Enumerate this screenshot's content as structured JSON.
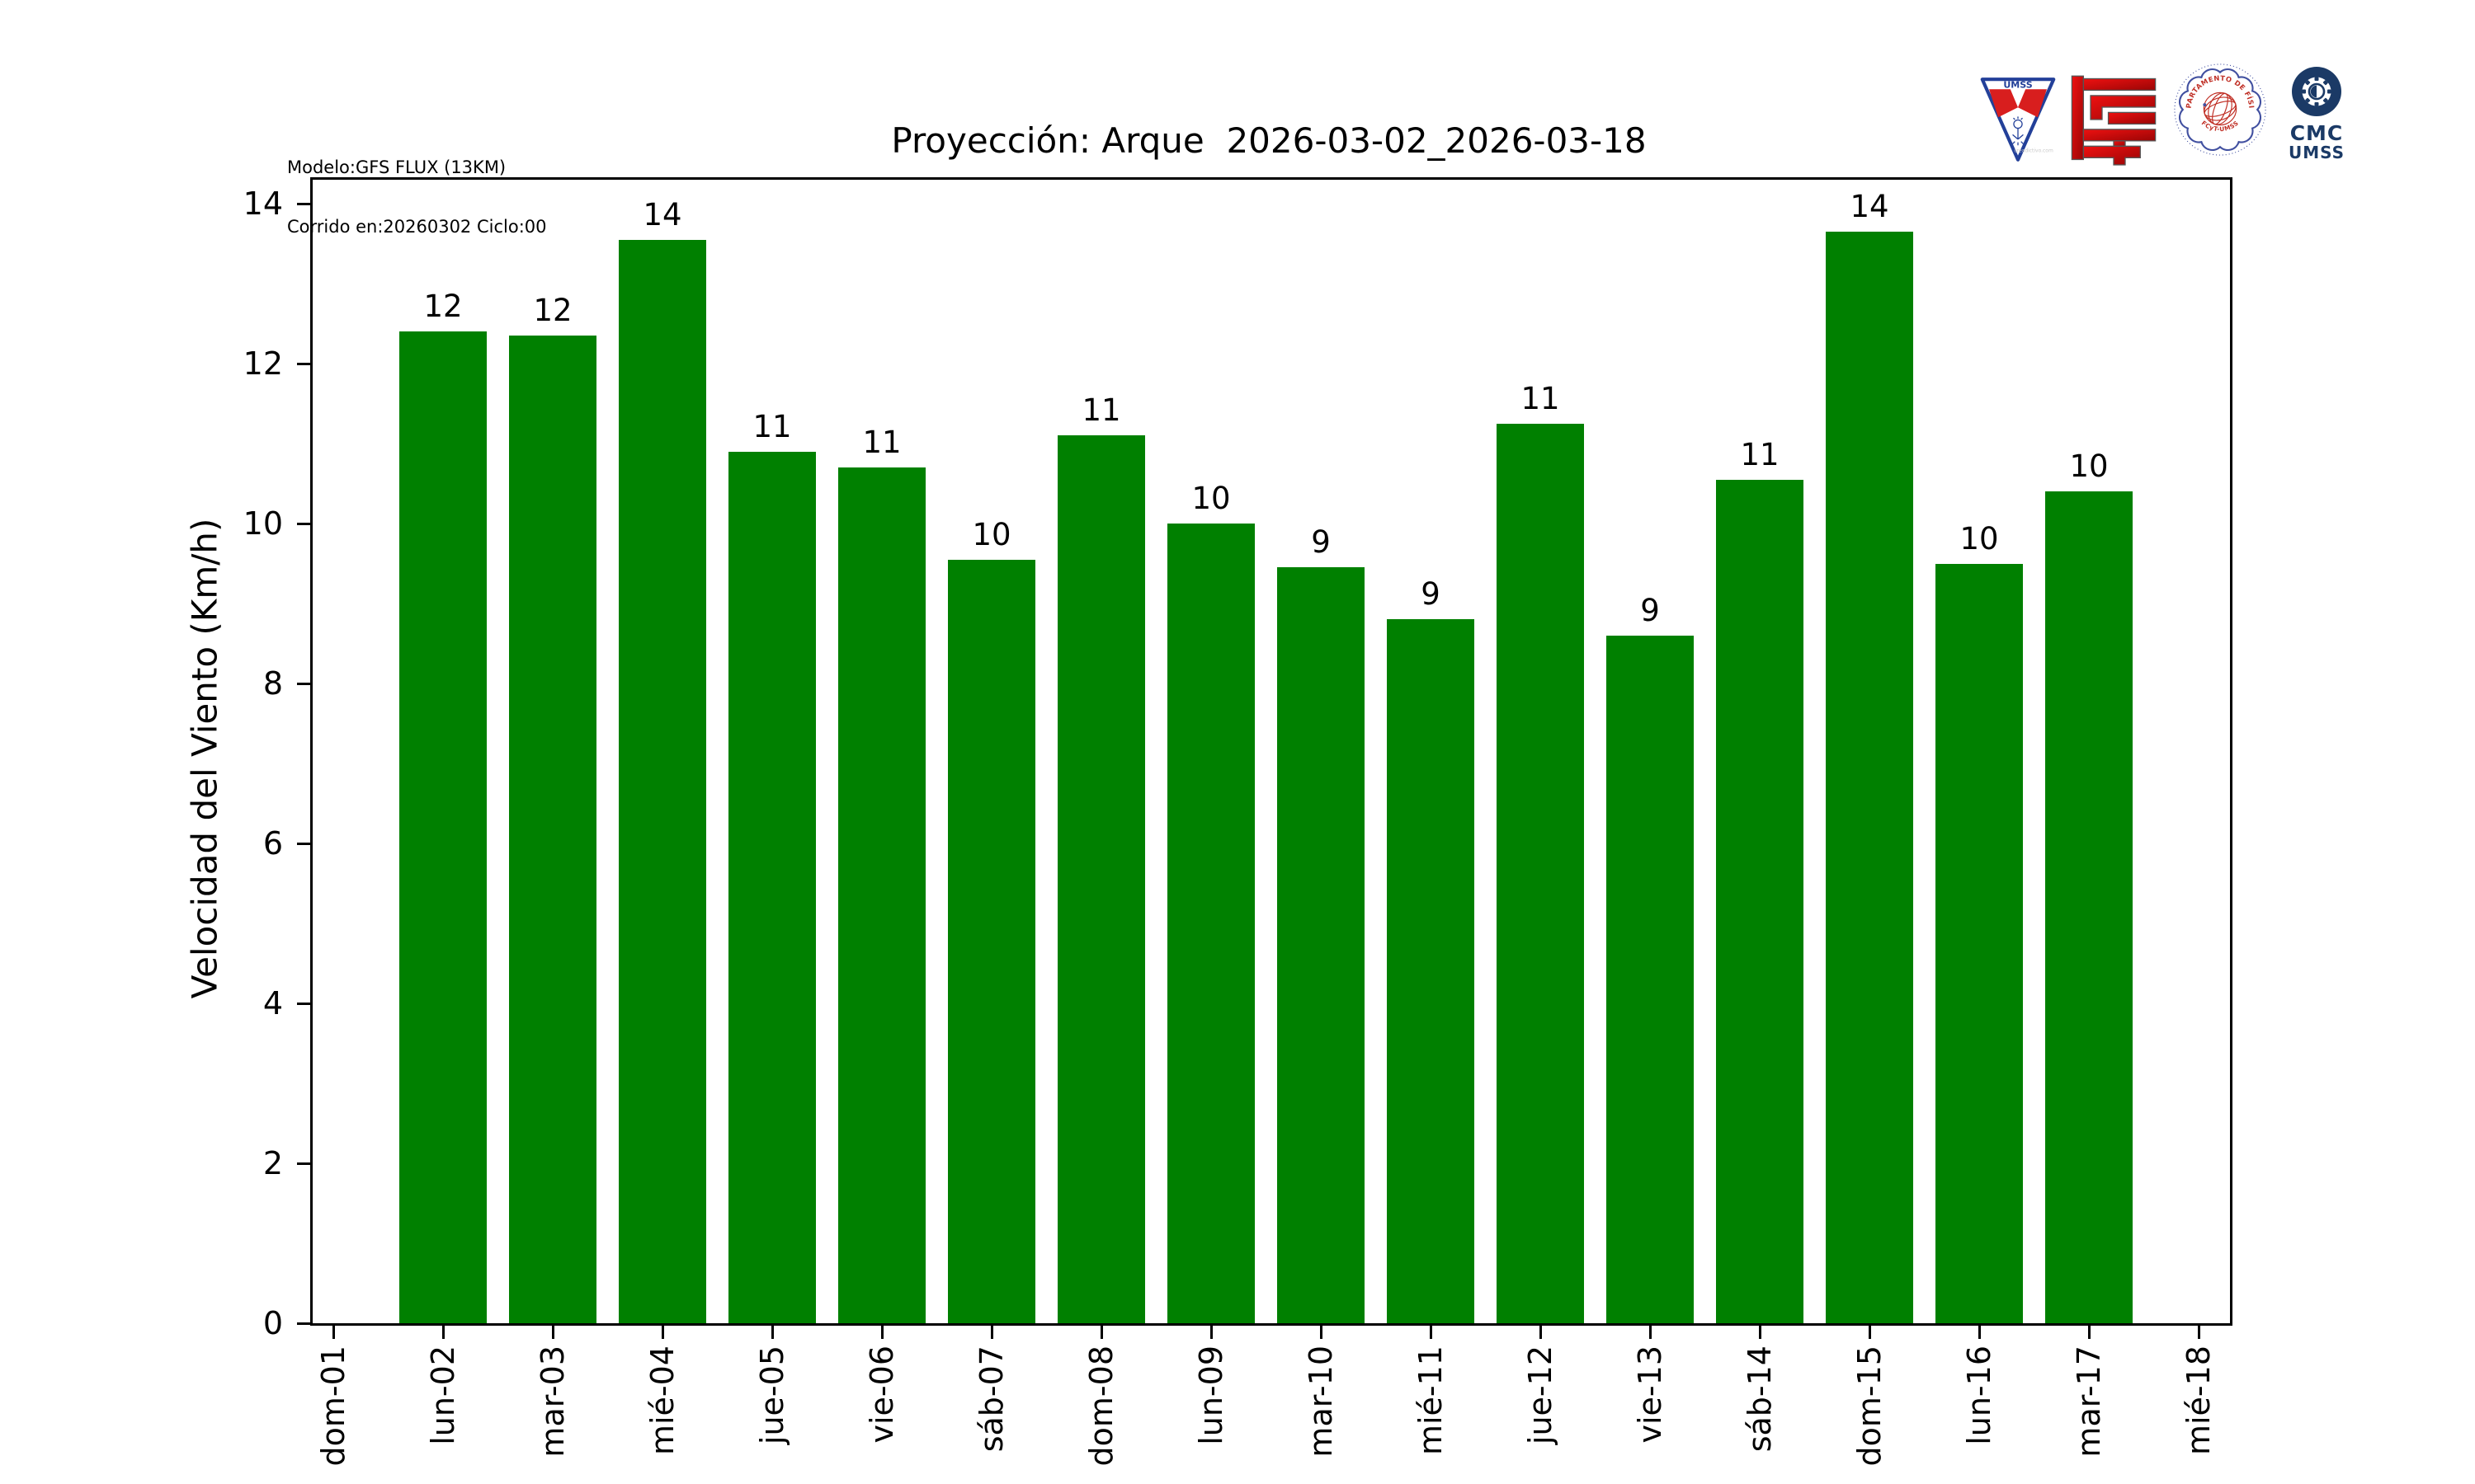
{
  "header": {
    "model_line1": "Modelo:GFS FLUX (13KM)",
    "model_line2": "Corrido en:20260302 Ciclo:00",
    "title": "Proyección: Arque  2026-03-02_2026-03-18",
    "logos": {
      "umss_shield_text": "UMSS",
      "umss_watermark": "creadictivo.com",
      "fisica_ring_text": "DEPARTAMENTO DE FÍSICA",
      "fisica_sub_text": "FCyT-UMSS",
      "cmc_line1": "CMC",
      "cmc_line2": "UMSS"
    }
  },
  "chart_data": {
    "type": "bar",
    "title": "Proyección: Arque  2026-03-02_2026-03-18",
    "categories": [
      "dom-01",
      "lun-02",
      "mar-03",
      "mié-04",
      "jue-05",
      "vie-06",
      "sáb-07",
      "dom-08",
      "lun-09",
      "mar-10",
      "mié-11",
      "jue-12",
      "vie-13",
      "sáb-14",
      "dom-15",
      "lun-16",
      "mar-17",
      "mié-18"
    ],
    "values": [
      null,
      12.4,
      12.35,
      13.55,
      10.9,
      10.7,
      9.55,
      11.1,
      10.0,
      9.45,
      8.8,
      11.25,
      8.6,
      10.55,
      13.65,
      9.5,
      10.4,
      null
    ],
    "bar_labels": [
      null,
      "12",
      "12",
      "14",
      "11",
      "11",
      "10",
      "11",
      "10",
      "9",
      "9",
      "11",
      "9",
      "11",
      "14",
      "10",
      "10",
      null
    ],
    "xlabel": "",
    "ylabel": "Velocidad del Viento (Km/h)",
    "ylim": [
      0,
      14.3
    ],
    "yticks": [
      0,
      2,
      4,
      6,
      8,
      10,
      12,
      14
    ],
    "bar_color": "#008000",
    "axis_color": "#000000",
    "grid": false,
    "legend": null
  }
}
